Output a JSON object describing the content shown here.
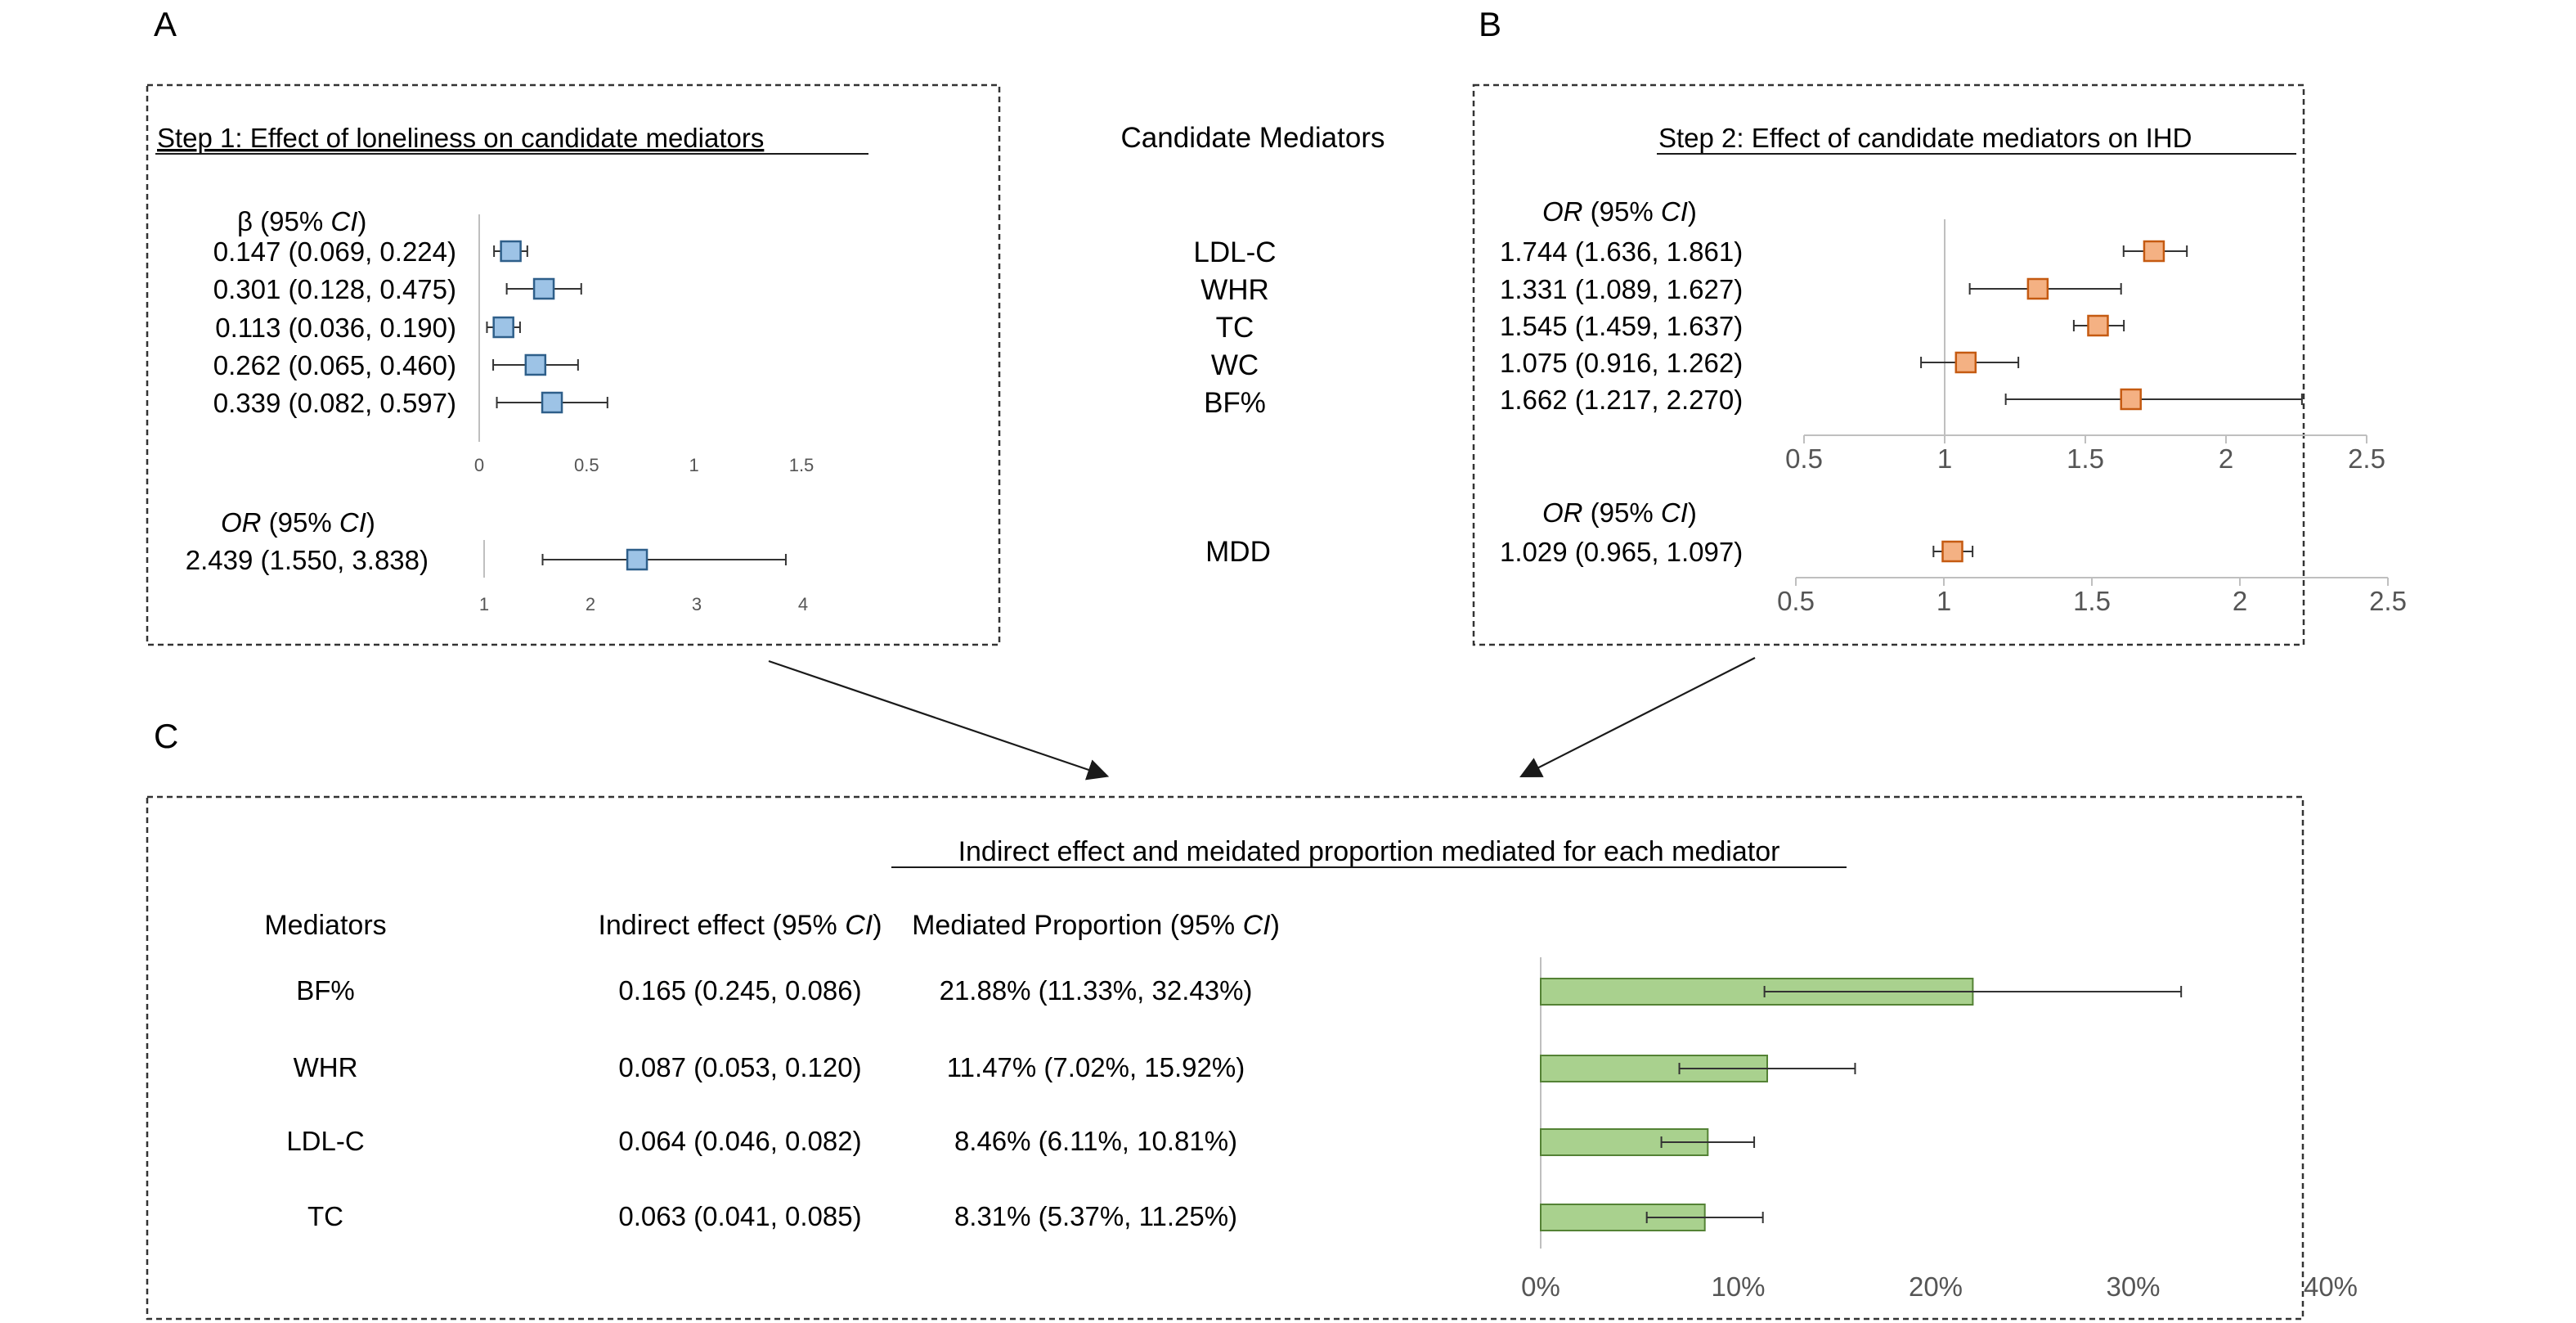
{
  "panel_letters": {
    "a": "A",
    "b": "B",
    "c": "C"
  },
  "center": {
    "heading": "Candidate Mediators",
    "mediators": [
      "LDL-C",
      "WHR",
      "TC",
      "WC",
      "BF%"
    ],
    "mdd": "MDD"
  },
  "colors": {
    "blue_fill": "#9DC3E6",
    "blue_stroke": "#2E5F8A",
    "orange_fill": "#F4B183",
    "orange_stroke": "#C55A11",
    "green_fill": "#A9D18E",
    "green_stroke": "#548235",
    "axis": "#BFBFBF",
    "error": "#333333"
  },
  "chart_data": [
    {
      "id": "A1",
      "type": "forest",
      "title": "Step 1: Effect of loneliness on candidate mediators",
      "header": {
        "symbol": "β",
        "ci": "(95% CI)"
      },
      "row_labels": [
        "0.147 (0.069, 0.224)",
        "0.301 (0.128, 0.475)",
        "0.113 (0.036, 0.190)",
        "0.262 (0.065, 0.460)",
        "0.339 (0.082, 0.597)"
      ],
      "estimates": [
        0.147,
        0.301,
        0.113,
        0.262,
        0.339
      ],
      "lower": [
        0.069,
        0.128,
        0.036,
        0.065,
        0.082
      ],
      "upper": [
        0.224,
        0.475,
        0.19,
        0.46,
        0.597
      ],
      "xlim": [
        0,
        1.5
      ],
      "ticks": [
        "0",
        "0.5",
        "1",
        "1.5"
      ],
      "tick_values": [
        0,
        0.5,
        1,
        1.5
      ]
    },
    {
      "id": "A2",
      "type": "forest",
      "header": {
        "symbol": "OR",
        "ci": "(95% CI)"
      },
      "row_labels": [
        "2.439 (1.550, 3.838)"
      ],
      "estimates": [
        2.439
      ],
      "lower": [
        1.55
      ],
      "upper": [
        3.838
      ],
      "xlim": [
        1,
        4
      ],
      "ticks": [
        "1",
        "2",
        "3",
        "4"
      ],
      "tick_values": [
        1,
        2,
        3,
        4
      ]
    },
    {
      "id": "B1",
      "type": "forest",
      "title": "Step 2: Effect of candidate mediators on IHD",
      "header": {
        "symbol": "OR",
        "ci": "(95% CI)"
      },
      "row_labels": [
        "1.744 (1.636, 1.861)",
        "1.331 (1.089, 1.627)",
        "1.545 (1.459, 1.637)",
        "1.075 (0.916, 1.262)",
        "1.662 (1.217, 2.270)"
      ],
      "estimates": [
        1.744,
        1.331,
        1.545,
        1.075,
        1.662
      ],
      "lower": [
        1.636,
        1.089,
        1.459,
        0.916,
        1.217
      ],
      "upper": [
        1.861,
        1.627,
        1.637,
        1.262,
        2.27
      ],
      "xlim": [
        0.5,
        2.5
      ],
      "reference_line": 1,
      "ticks": [
        "0.5",
        "1",
        "1.5",
        "2",
        "2.5"
      ],
      "tick_values": [
        0.5,
        1,
        1.5,
        2,
        2.5
      ]
    },
    {
      "id": "B2",
      "type": "forest",
      "header": {
        "symbol": "OR",
        "ci": "(95% CI)"
      },
      "row_labels": [
        "1.029 (0.965, 1.097)"
      ],
      "estimates": [
        1.029
      ],
      "lower": [
        0.965
      ],
      "upper": [
        1.097
      ],
      "xlim": [
        0.5,
        2.5
      ],
      "ticks": [
        "0.5",
        "1",
        "1.5",
        "2",
        "2.5"
      ],
      "tick_values": [
        0.5,
        1,
        1.5,
        2,
        2.5
      ]
    },
    {
      "id": "C",
      "type": "bar",
      "title": "Indirect effect and meidated proportion mediated for each mediator",
      "columns": [
        "Mediators",
        "Indirect effect (95% CI)",
        "Mediated Proportion (95% CI)"
      ],
      "categories": [
        "BF%",
        "WHR",
        "LDL-C",
        "TC"
      ],
      "indirect_effect": [
        "0.165 (0.245, 0.086)",
        "0.087 (0.053, 0.120)",
        "0.064 (0.046, 0.082)",
        "0.063 (0.041, 0.085)"
      ],
      "proportion_labels": [
        "21.88% (11.33%, 32.43%)",
        "11.47% (7.02%, 15.92%)",
        "8.46% (6.11%, 10.81%)",
        "8.31% (5.37%, 11.25%)"
      ],
      "values": [
        21.88,
        11.47,
        8.46,
        8.31
      ],
      "lower": [
        11.33,
        7.02,
        6.11,
        5.37
      ],
      "upper": [
        32.43,
        15.92,
        10.81,
        11.25
      ],
      "xlim": [
        0,
        40
      ],
      "ticks": [
        "0%",
        "10%",
        "20%",
        "30%",
        "40%"
      ],
      "tick_values": [
        0,
        10,
        20,
        30,
        40
      ]
    }
  ]
}
